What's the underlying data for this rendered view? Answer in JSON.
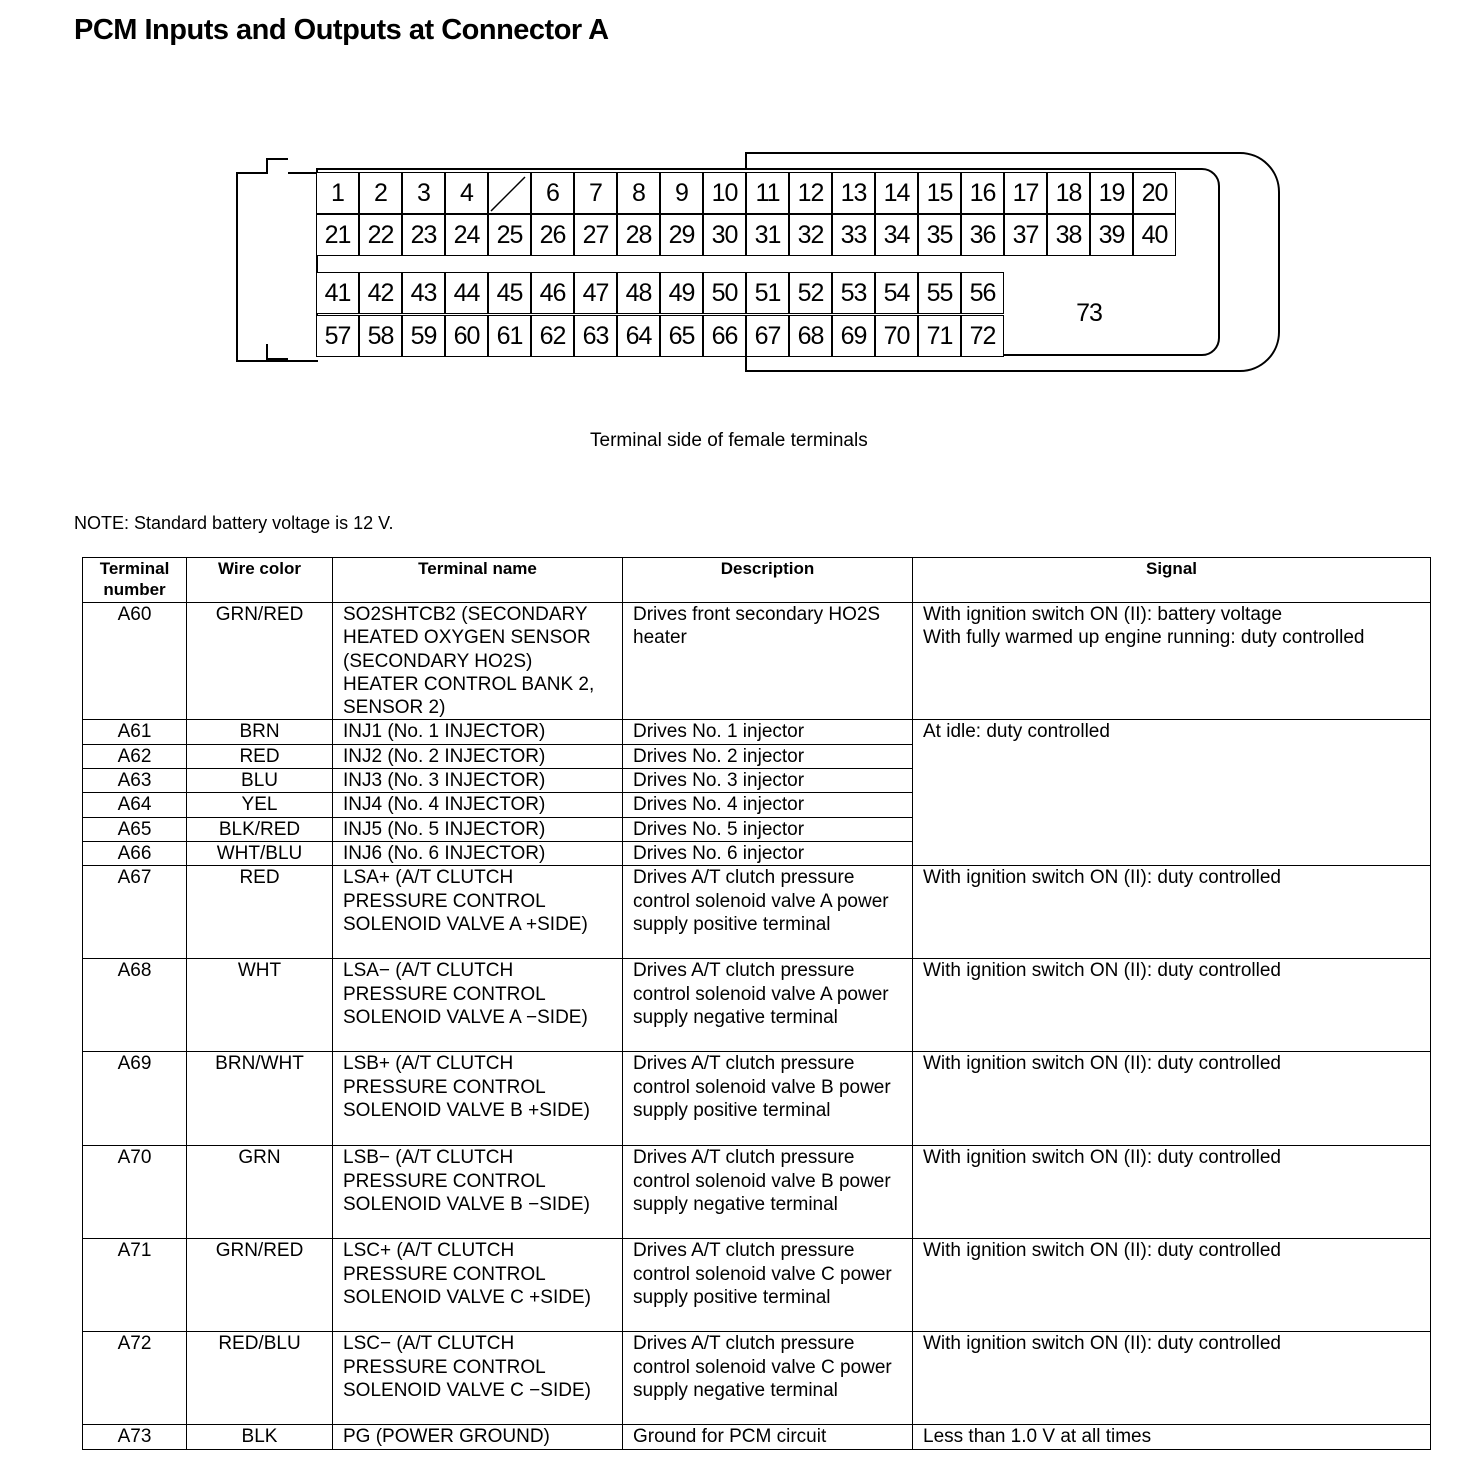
{
  "title": "PCM Inputs and Outputs at Connector A",
  "connector": {
    "rows": [
      [
        "1",
        "2",
        "3",
        "4",
        "",
        "6",
        "7",
        "8",
        "9",
        "10",
        "11",
        "12",
        "13",
        "14",
        "15",
        "16",
        "17",
        "18",
        "19",
        "20"
      ],
      [
        "21",
        "22",
        "23",
        "24",
        "25",
        "26",
        "27",
        "28",
        "29",
        "30",
        "31",
        "32",
        "33",
        "34",
        "35",
        "36",
        "37",
        "38",
        "39",
        "40"
      ],
      [
        "41",
        "42",
        "43",
        "44",
        "45",
        "46",
        "47",
        "48",
        "49",
        "50",
        "51",
        "52",
        "53",
        "54",
        "55",
        "56"
      ],
      [
        "57",
        "58",
        "59",
        "60",
        "61",
        "62",
        "63",
        "64",
        "65",
        "66",
        "67",
        "68",
        "69",
        "70",
        "71",
        "72"
      ]
    ],
    "big_terminal": "73",
    "caption": "Terminal side of female terminals"
  },
  "note": "NOTE: Standard battery voltage is 12 V.",
  "table": {
    "headers": [
      "Terminal number",
      "Wire color",
      "Terminal name",
      "Description",
      "Signal"
    ],
    "rows": [
      {
        "num": "A60",
        "color": "GRN/RED",
        "name": "SO2SHTCB2 (SECONDARY HEATED OXYGEN SENSOR (SECONDARY HO2S) HEATER CONTROL BANK 2, SENSOR 2)",
        "desc": "Drives front secondary HO2S heater",
        "signal": "With ignition switch ON (II): battery voltage\nWith fully warmed up engine running: duty controlled"
      },
      {
        "num": "A61",
        "color": "BRN",
        "name": "INJ1 (No. 1 INJECTOR)",
        "desc": "Drives No. 1 injector",
        "signal": "At idle: duty controlled",
        "span": 6
      },
      {
        "num": "A62",
        "color": "RED",
        "name": "INJ2 (No. 2 INJECTOR)",
        "desc": "Drives No. 2 injector"
      },
      {
        "num": "A63",
        "color": "BLU",
        "name": "INJ3 (No. 3 INJECTOR)",
        "desc": "Drives No. 3 injector"
      },
      {
        "num": "A64",
        "color": "YEL",
        "name": "INJ4 (No. 4 INJECTOR)",
        "desc": "Drives No. 4 injector"
      },
      {
        "num": "A65",
        "color": "BLK/RED",
        "name": "INJ5 (No. 5 INJECTOR)",
        "desc": "Drives No. 5 injector"
      },
      {
        "num": "A66",
        "color": "WHT/BLU",
        "name": "INJ6 (No. 6 INJECTOR)",
        "desc": "Drives No. 6 injector"
      },
      {
        "num": "A67",
        "color": "RED",
        "name": "LSA+ (A/T CLUTCH PRESSURE CONTROL SOLENOID VALVE A +SIDE)",
        "desc": "Drives A/T clutch pressure control solenoid valve A power supply positive terminal",
        "signal": "With ignition switch ON (II): duty controlled"
      },
      {
        "num": "A68",
        "color": "WHT",
        "name": "LSA− (A/T CLUTCH PRESSURE CONTROL SOLENOID VALVE A −SIDE)",
        "desc": "Drives A/T clutch pressure control solenoid valve A power supply negative terminal",
        "signal": "With ignition switch ON (II): duty controlled"
      },
      {
        "num": "A69",
        "color": "BRN/WHT",
        "name": "LSB+ (A/T CLUTCH PRESSURE CONTROL SOLENOID VALVE B +SIDE)",
        "desc": "Drives A/T clutch pressure control solenoid valve B power supply positive terminal",
        "signal": "With ignition switch ON (II): duty controlled"
      },
      {
        "num": "A70",
        "color": "GRN",
        "name": "LSB− (A/T CLUTCH PRESSURE CONTROL SOLENOID VALVE B −SIDE)",
        "desc": "Drives A/T clutch pressure control solenoid valve B power supply negative terminal",
        "signal": "With ignition switch ON (II): duty controlled"
      },
      {
        "num": "A71",
        "color": "GRN/RED",
        "name": "LSC+ (A/T CLUTCH PRESSURE CONTROL SOLENOID VALVE C +SIDE)",
        "desc": "Drives A/T clutch pressure control solenoid valve C power supply positive terminal",
        "signal": "With ignition switch ON (II): duty controlled"
      },
      {
        "num": "A72",
        "color": "RED/BLU",
        "name": "LSC− (A/T CLUTCH PRESSURE CONTROL SOLENOID VALVE C −SIDE)",
        "desc": "Drives A/T clutch pressure control solenoid valve C power supply negative terminal",
        "signal": "With ignition switch ON (II): duty controlled"
      },
      {
        "num": "A73",
        "color": "BLK",
        "name": "PG (POWER GROUND)",
        "desc": "Ground for PCM circuit",
        "signal": "Less than 1.0 V at all times"
      }
    ]
  }
}
